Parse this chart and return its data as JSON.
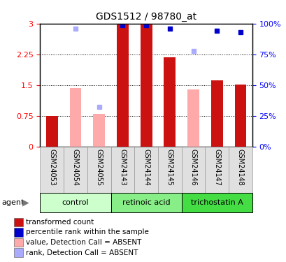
{
  "title": "GDS1512 / 98780_at",
  "samples": [
    "GSM24053",
    "GSM24054",
    "GSM24055",
    "GSM24143",
    "GSM24144",
    "GSM24145",
    "GSM24146",
    "GSM24147",
    "GSM24148"
  ],
  "groups": [
    {
      "name": "control",
      "color": "#ccffcc",
      "samples": [
        0,
        1,
        2
      ]
    },
    {
      "name": "retinoic acid",
      "color": "#88ee88",
      "samples": [
        3,
        4,
        5
      ]
    },
    {
      "name": "trichostatin A",
      "color": "#44dd44",
      "samples": [
        6,
        7,
        8
      ]
    }
  ],
  "bar_colors": {
    "present_red": "#cc1111",
    "absent_pink": "#ffaaaa",
    "present_blue": "#0000cc",
    "absent_blue": "#aaaaff"
  },
  "red_present_indices": [
    0,
    3,
    4,
    5,
    7,
    8
  ],
  "red_absent_indices": [
    1,
    2,
    6
  ],
  "red_values": [
    0.75,
    1.43,
    0.8,
    2.98,
    2.98,
    2.18,
    1.4,
    1.61,
    1.52
  ],
  "blue_values": [
    null,
    2.87,
    0.97,
    2.97,
    2.97,
    2.87,
    2.33,
    2.83,
    2.8
  ],
  "blue_present": [
    false,
    false,
    false,
    true,
    true,
    true,
    false,
    true,
    true
  ],
  "blue_null_indices": [
    0
  ],
  "ylim_left": [
    0,
    3
  ],
  "ylim_right": [
    0,
    100
  ],
  "yticks_left": [
    0,
    0.75,
    1.5,
    2.25,
    3
  ],
  "yticks_right": [
    0,
    25,
    50,
    75,
    100
  ],
  "ytick_labels_left": [
    "0",
    "0.75",
    "1.5",
    "2.25",
    "3"
  ],
  "ytick_labels_right": [
    "0%",
    "25%",
    "50%",
    "75%",
    "100%"
  ],
  "legend_items": [
    {
      "color": "#cc1111",
      "label": "transformed count"
    },
    {
      "color": "#0000cc",
      "label": "percentile rank within the sample"
    },
    {
      "color": "#ffaaaa",
      "label": "value, Detection Call = ABSENT"
    },
    {
      "color": "#aaaaff",
      "label": "rank, Detection Call = ABSENT"
    }
  ],
  "agent_label": "agent",
  "background_color": "#ffffff"
}
